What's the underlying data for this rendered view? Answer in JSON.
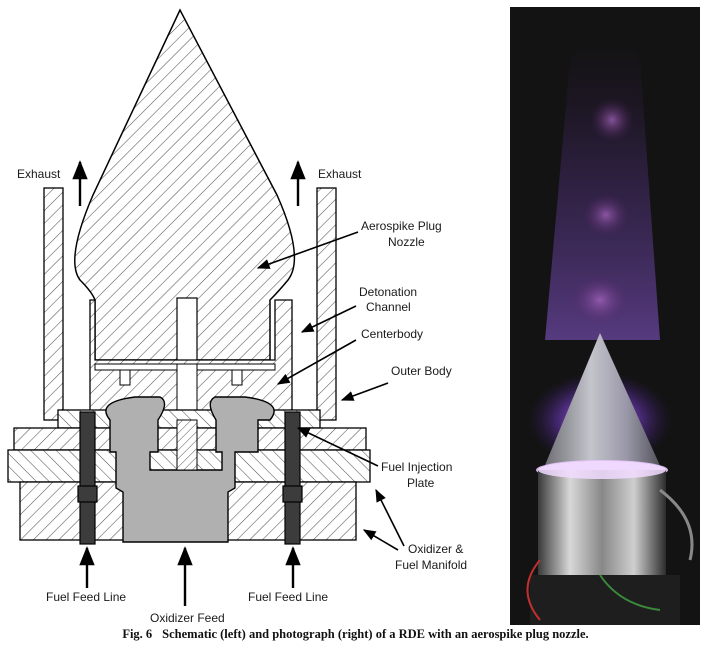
{
  "labels": {
    "exhaust_left": "Exhaust",
    "exhaust_right": "Exhaust",
    "aerospike_line1": "Aerospike Plug",
    "aerospike_line2": "Nozzle",
    "detonation_line1": "Detonation",
    "detonation_line2": "Channel",
    "centerbody": "Centerbody",
    "outer_body": "Outer Body",
    "fuel_injection_line1": "Fuel Injection",
    "fuel_injection_line2": "Plate",
    "oxidizer_line1": "Oxidizer &",
    "oxidizer_line2": "Fuel Manifold",
    "fuel_feed_left": "Fuel Feed Line",
    "fuel_feed_right": "Fuel Feed Line",
    "oxidizer_feed": "Oxidizer Feed"
  },
  "caption": {
    "number": "Fig. 6",
    "text": "Schematic (left) and photograph (right) of a RDE with an aerospike plug nozzle."
  }
}
